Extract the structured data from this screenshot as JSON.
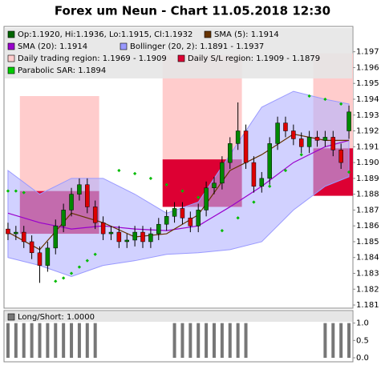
{
  "chart_data": {
    "type": "candlestick",
    "title": "Forex um Neun - Chart 11.05.2018 12:30",
    "ylim": [
      1.1808,
      1.1985
    ],
    "yticks": [
      1.181,
      1.182,
      1.183,
      1.184,
      1.185,
      1.186,
      1.187,
      1.188,
      1.189,
      {
        "value": 1.19,
        "label": "1.190"
      },
      1.191,
      1.192,
      1.193,
      1.194,
      1.195,
      1.196,
      1.197
    ],
    "up_color": "#008800",
    "down_color": "#dd0000",
    "open": [
      1.1858,
      1.1855,
      1.1856,
      1.185,
      1.1843,
      1.1835,
      1.1846,
      1.186,
      1.187,
      1.188,
      1.1886,
      1.1872,
      1.1862,
      1.1855,
      1.1856,
      1.185,
      1.1851,
      1.1856,
      1.185,
      1.1855,
      1.1861,
      1.1866,
      1.1871,
      1.1865,
      1.186,
      1.187,
      1.1884,
      1.1887,
      1.19,
      1.1912,
      1.192,
      1.19,
      1.1885,
      1.189,
      1.1912,
      1.1925,
      1.192,
      1.1915,
      1.191,
      1.1916,
      1.1914,
      1.1916,
      1.1908,
      1.192
    ],
    "high": [
      1.1862,
      1.186,
      1.186,
      1.1854,
      1.1847,
      1.185,
      1.1864,
      1.1874,
      1.1884,
      1.189,
      1.189,
      1.1876,
      1.1866,
      1.186,
      1.186,
      1.1855,
      1.186,
      1.186,
      1.1859,
      1.1865,
      1.187,
      1.1875,
      1.1875,
      1.1869,
      1.1874,
      1.1888,
      1.1891,
      1.1904,
      1.1916,
      1.1938,
      1.1924,
      1.1904,
      1.1894,
      1.1916,
      1.1929,
      1.1929,
      1.1924,
      1.1919,
      1.192,
      1.192,
      1.192,
      1.192,
      1.1912,
      1.1936
    ],
    "low": [
      1.1851,
      1.1851,
      1.1846,
      1.1839,
      1.1824,
      1.1831,
      1.1842,
      1.1856,
      1.1866,
      1.1876,
      1.1868,
      1.1858,
      1.1851,
      1.1851,
      1.1846,
      1.1846,
      1.1847,
      1.1846,
      1.1846,
      1.1851,
      1.1857,
      1.1862,
      1.1861,
      1.1856,
      1.1856,
      1.1866,
      1.188,
      1.1883,
      1.1896,
      1.1908,
      1.1896,
      1.1881,
      1.1881,
      1.1886,
      1.1908,
      1.1916,
      1.1911,
      1.1906,
      1.1906,
      1.191,
      1.191,
      1.1904,
      1.1896,
      1.1915
    ],
    "close": [
      1.1855,
      1.1856,
      1.185,
      1.1843,
      1.1835,
      1.1846,
      1.186,
      1.187,
      1.188,
      1.1886,
      1.1872,
      1.1862,
      1.1855,
      1.1856,
      1.185,
      1.1851,
      1.1856,
      1.185,
      1.1855,
      1.1861,
      1.1866,
      1.1871,
      1.1865,
      1.186,
      1.187,
      1.1884,
      1.1887,
      1.19,
      1.1912,
      1.192,
      1.19,
      1.1885,
      1.189,
      1.1912,
      1.1925,
      1.192,
      1.1915,
      1.191,
      1.1916,
      1.1914,
      1.1916,
      1.1908,
      1.19,
      1.1932
    ],
    "regions": [
      {
        "start": 2,
        "end": 11,
        "trading": [
          1.1942,
          1.1882
        ],
        "sl": [
          1.1882,
          1.1855
        ]
      },
      {
        "start": 20,
        "end": 29,
        "trading": [
          1.1968,
          1.1902
        ],
        "sl": [
          1.1902,
          1.1872
        ]
      },
      {
        "start": 39,
        "end": 43,
        "trading": [
          1.1969,
          1.1909
        ],
        "sl": [
          1.1909,
          1.1879
        ]
      }
    ],
    "band": {
      "color": "#b3b3ff",
      "x": [
        0,
        4,
        8,
        12,
        16,
        20,
        24,
        28,
        32,
        36,
        40,
        43
      ],
      "upper": [
        1.1895,
        1.188,
        1.189,
        1.189,
        1.188,
        1.1868,
        1.1875,
        1.1905,
        1.1935,
        1.1945,
        1.194,
        1.1937
      ],
      "lower": [
        1.184,
        1.1835,
        1.1828,
        1.1835,
        1.1838,
        1.1842,
        1.1843,
        1.1845,
        1.185,
        1.187,
        1.1885,
        1.1891
      ]
    },
    "lines": [
      {
        "color": "#9900cc",
        "x": [
          0,
          4,
          8,
          12,
          16,
          20,
          24,
          28,
          32,
          36,
          40,
          43
        ],
        "values": [
          1.1868,
          1.1862,
          1.1858,
          1.186,
          1.1858,
          1.1857,
          1.186,
          1.1872,
          1.1885,
          1.19,
          1.191,
          1.1914
        ]
      },
      {
        "color": "#663300",
        "x": [
          0,
          4,
          8,
          12,
          16,
          20,
          24,
          28,
          32,
          36,
          40,
          43
        ],
        "values": [
          1.1856,
          1.1845,
          1.1868,
          1.1862,
          1.1853,
          1.1855,
          1.1867,
          1.1895,
          1.1905,
          1.1918,
          1.1914,
          1.1914
        ]
      }
    ],
    "sar": {
      "color": "#00bb00",
      "x": [
        0,
        1,
        2,
        6,
        7,
        8,
        9,
        10,
        11,
        14,
        16,
        18,
        20,
        22,
        24,
        27,
        29,
        31,
        33,
        35,
        37,
        38,
        40,
        42,
        43
      ],
      "values": [
        1.1882,
        1.1882,
        1.1881,
        1.1825,
        1.1827,
        1.183,
        1.1834,
        1.1838,
        1.1842,
        1.1895,
        1.1893,
        1.189,
        1.1886,
        1.1882,
        1.1878,
        1.1857,
        1.1865,
        1.1875,
        1.1885,
        1.1895,
        1.1905,
        1.1942,
        1.194,
        1.1937,
        1.1894
      ]
    },
    "legend": [
      {
        "label": "Op:1.1920, Hi:1.1936, Lo:1.1915, Cl:1.1932",
        "color": "#006600"
      },
      {
        "label": "SMA (5): 1.1914",
        "color": "#663300"
      },
      {
        "label": "SMA (20): 1.1914",
        "color": "#9900cc"
      },
      {
        "label": "Bollinger (20, 2): 1.1891 - 1.1937",
        "color": "#9999ff"
      },
      {
        "label": "Daily trading region: 1.1969 - 1.1909",
        "color": "#ffcccc"
      },
      {
        "label": "Daily S/L region: 1.1909 - 1.1879",
        "color": "#dd0033"
      },
      {
        "label": "Parabolic SAR: 1.1894",
        "color": "#00cc00"
      }
    ],
    "indicator": {
      "label": "Long/Short: 1.0000",
      "color": "#777777",
      "ylim": [
        0,
        1.2
      ],
      "yticks": [
        {
          "value": 0,
          "label": "0.0"
        },
        0.5,
        {
          "value": 1,
          "label": "1.0"
        }
      ],
      "values": [
        1,
        1,
        1,
        1,
        1,
        1,
        1,
        1,
        1,
        1,
        1,
        1,
        0,
        0,
        0,
        0,
        0,
        0,
        0,
        0,
        0,
        1,
        1,
        1,
        1,
        1,
        1,
        1,
        1,
        1,
        1,
        0,
        0,
        0,
        0,
        0,
        0,
        0,
        0,
        0,
        1,
        1,
        1,
        1
      ]
    }
  }
}
